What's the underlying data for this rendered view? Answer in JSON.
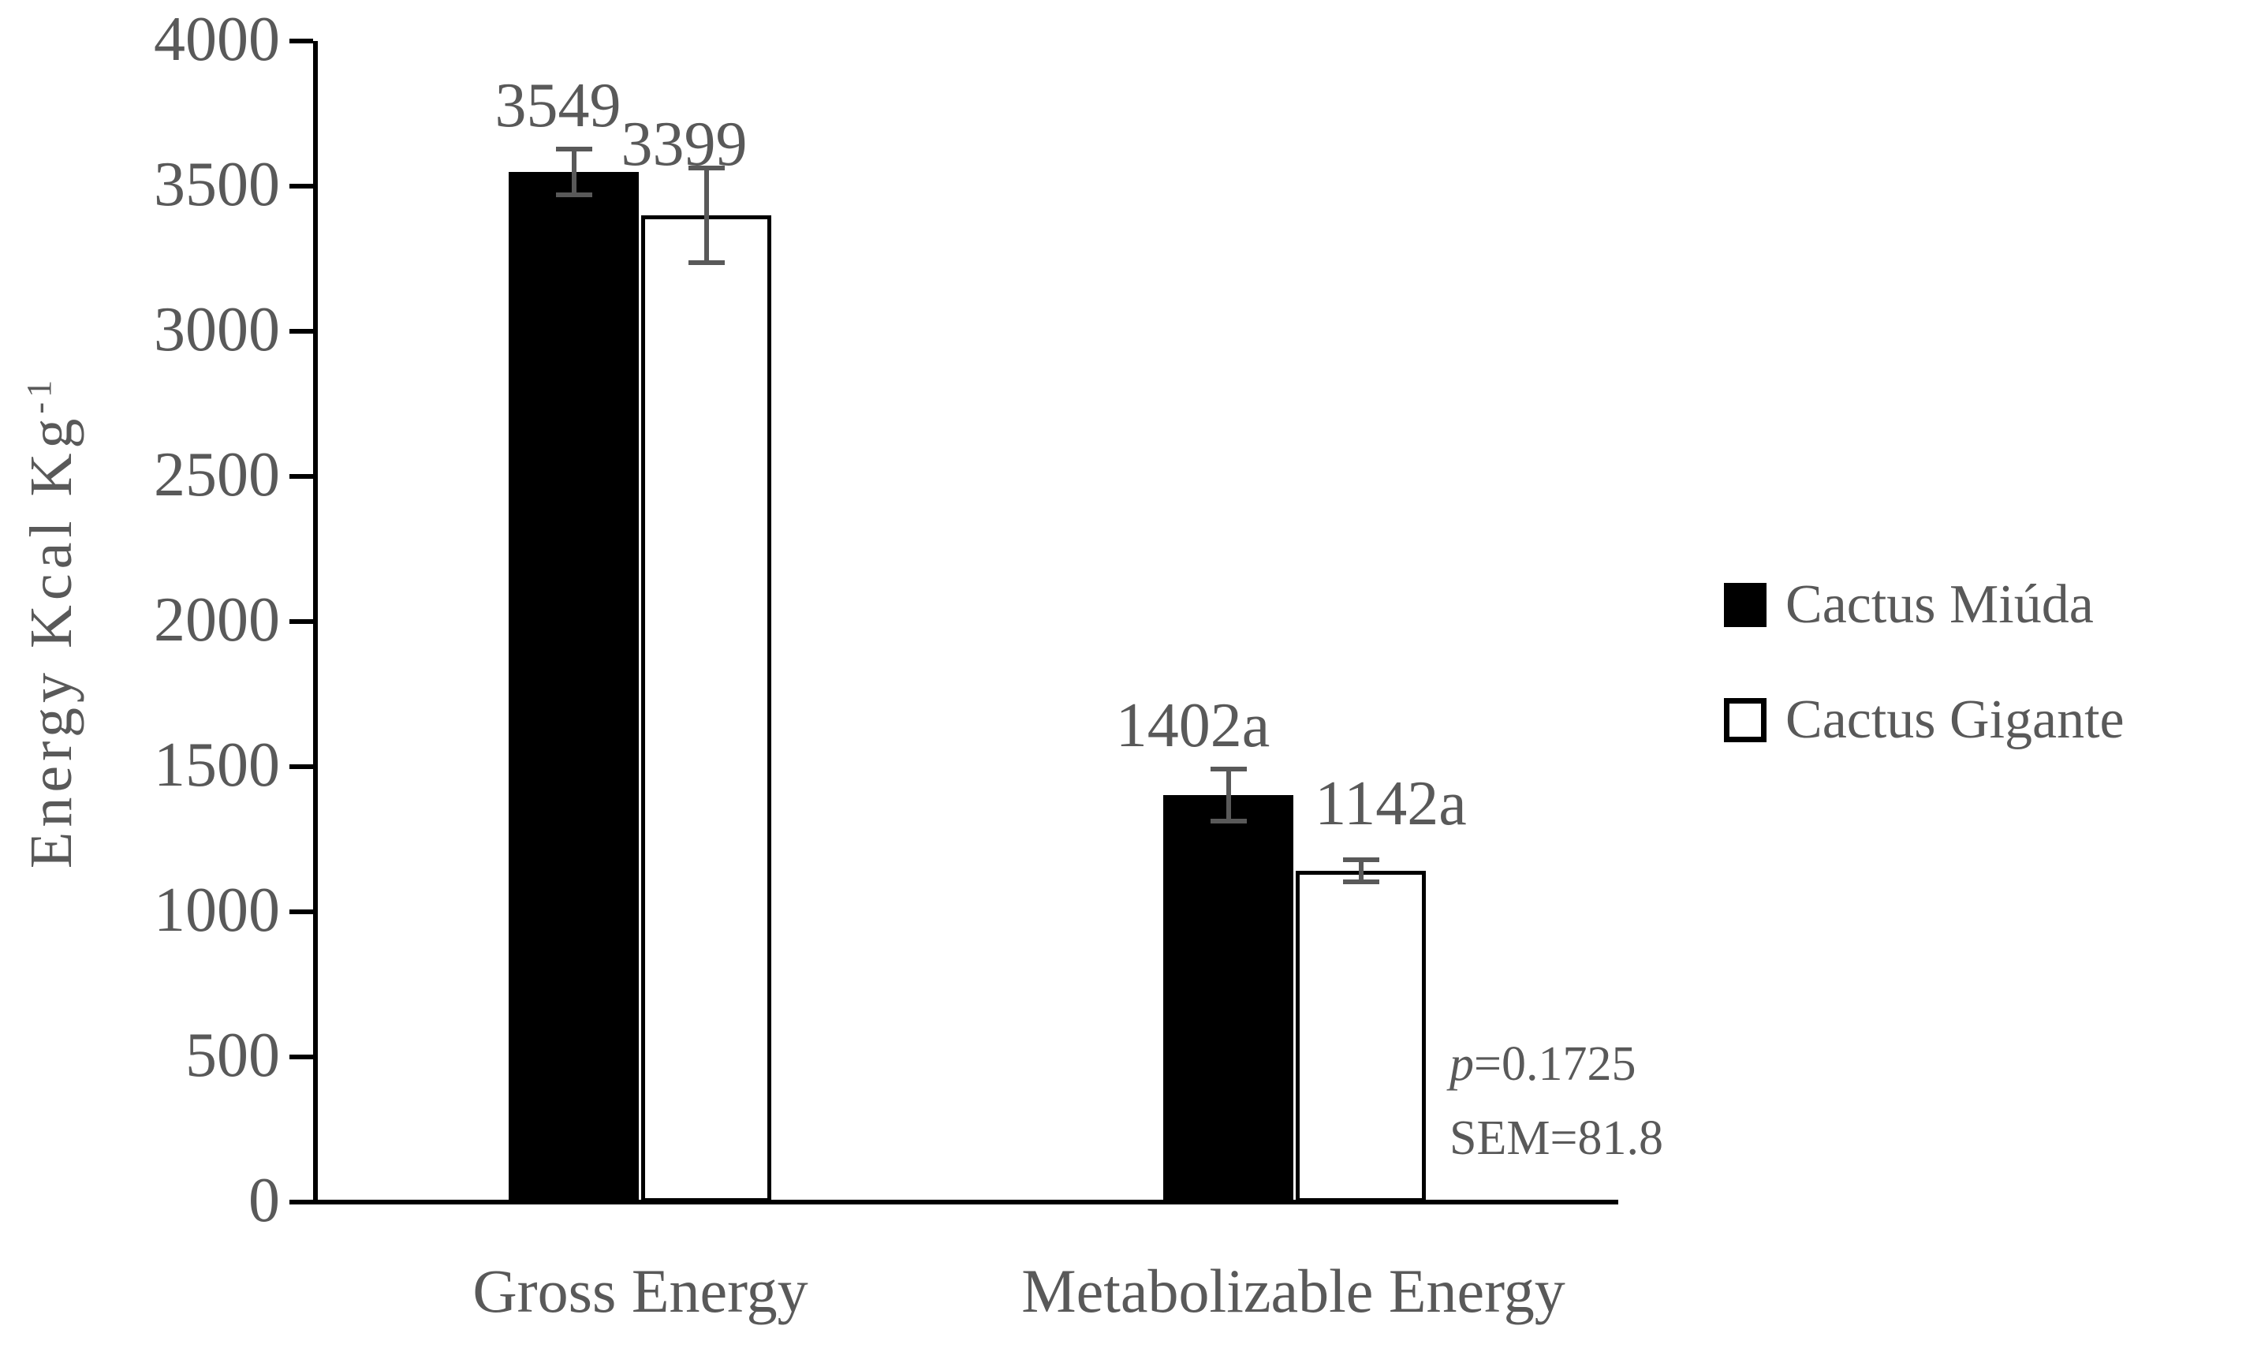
{
  "chart_data": {
    "type": "bar",
    "categories": [
      "Gross Energy",
      "Metabolizable Energy"
    ],
    "series": [
      {
        "name": "Cactus Miúda",
        "fill": "#000000",
        "values": [
          3549,
          1402
        ],
        "bar_labels": [
          "3549",
          "1402a"
        ],
        "errors": [
          80,
          90
        ]
      },
      {
        "name": "Cactus Gigante",
        "fill": "#ffffff",
        "values": [
          3399,
          1142
        ],
        "bar_labels": [
          "3399",
          "1142a"
        ],
        "errors": [
          163,
          38
        ]
      }
    ],
    "title": "",
    "xlabel": "",
    "ylabel_base": "Energy Kcal Kg",
    "ylabel_exponent": "-1",
    "ylim": [
      0,
      4000
    ],
    "ytick_step": 500,
    "yticks": [
      0,
      500,
      1000,
      1500,
      2000,
      2500,
      3000,
      3500,
      4000
    ],
    "grid": false,
    "legend_position": "right"
  },
  "annotation": {
    "p_symbol": "p",
    "p_rest": "=0.1725",
    "sem_line": "SEM=81.8"
  },
  "colors": {
    "text": "#595959",
    "axis": "#000000",
    "error_bar": "#595959",
    "bar_fill_series1": "#000000",
    "bar_fill_series2": "#ffffff"
  }
}
